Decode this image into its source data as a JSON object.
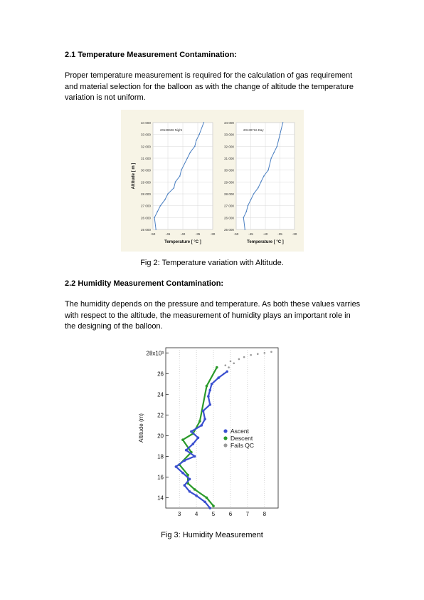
{
  "section1": {
    "heading": "2.1 Temperature Measurement Contamination:",
    "body": "Proper temperature measurement is required for the calculation of gas requirement and material selection for the balloon as with the change of altitude the temperature variation is not uniform."
  },
  "figure1": {
    "caption": "Fig 2: Temperature variation with Altitude.",
    "chart_data": [
      {
        "type": "line",
        "title": "20130606 Night",
        "xlabel": "Temperature [ °C ]",
        "ylabel": "Altitude [ m ]",
        "xlim": [
          -50,
          -30
        ],
        "ylim": [
          25000,
          34000
        ],
        "x_ticks": [
          "-50",
          "-45",
          "-40",
          "-35",
          "-30"
        ],
        "y_ticks": [
          "25 000",
          "26 000",
          "27 000",
          "28 000",
          "29 000",
          "30 000",
          "31 000",
          "32 000",
          "33 000",
          "34 000"
        ],
        "x": [
          -49,
          -49.5,
          -48.5,
          -47.5,
          -46,
          -45,
          -43,
          -42.5,
          -41,
          -40.5,
          -38.5,
          -37.5,
          -36,
          -35.5,
          -34.5,
          -33
        ],
        "y": [
          25000,
          26000,
          26500,
          27000,
          27500,
          28000,
          28500,
          29000,
          29500,
          30000,
          31000,
          31500,
          32000,
          32500,
          33000,
          34000
        ],
        "color": "#4a7fc1"
      },
      {
        "type": "line",
        "title": "20130716 Day",
        "xlabel": "Temperature [ °C ]",
        "xlim": [
          -50,
          -30
        ],
        "ylim": [
          25000,
          34000
        ],
        "x_ticks": [
          "-50",
          "-45",
          "-40",
          "-35",
          "-30"
        ],
        "y_ticks": [
          "25 000",
          "26 000",
          "27 000",
          "28 000",
          "29 000",
          "30 000",
          "31 000",
          "32 000",
          "33 000",
          "34 000"
        ],
        "x": [
          -47,
          -47.5,
          -46.5,
          -46,
          -45,
          -44,
          -42.5,
          -41.5,
          -40.5,
          -39,
          -38,
          -37,
          -36,
          -35,
          -34
        ],
        "y": [
          25000,
          26000,
          26500,
          27000,
          27500,
          28000,
          28500,
          29000,
          29500,
          30000,
          31000,
          31500,
          32000,
          33000,
          34000
        ],
        "color": "#4a7fc1"
      }
    ]
  },
  "section2": {
    "heading": "2.2 Humidity Measurement Contamination:",
    "body": "The humidity depends on the pressure and temperature. As both these values varries with respect to the altitude, the measurement of humidity plays an important role in the designing of the balloon."
  },
  "figure2": {
    "caption": "Fig 3: Humidity Measurement",
    "chart_data": {
      "type": "scatter",
      "ylabel": "Altitude (m)",
      "ylim": [
        13,
        28.5
      ],
      "xlim": [
        2.2,
        8.8
      ],
      "x_ticks": [
        "3",
        "4",
        "5",
        "6",
        "7",
        "8"
      ],
      "y_ticks": [
        "14",
        "16",
        "18",
        "20",
        "22",
        "24",
        "26",
        "28x10³"
      ],
      "legend": "right",
      "series": [
        {
          "name": "Ascent",
          "color": "#3a4fd0",
          "x": [
            4.8,
            4.5,
            4.0,
            3.6,
            3.3,
            3.6,
            3.2,
            2.8,
            3.3,
            3.9,
            3.4,
            3.8,
            4.1,
            3.7,
            4.3,
            4.5,
            4.4,
            4.8,
            4.7,
            4.8,
            4.9,
            5.3,
            5.8
          ],
          "y": [
            13.0,
            13.6,
            14.2,
            14.6,
            15.2,
            15.8,
            16.4,
            17.0,
            17.6,
            18.0,
            18.6,
            19.2,
            19.8,
            20.4,
            21.0,
            21.6,
            22.4,
            23.0,
            23.8,
            24.4,
            25.0,
            25.6,
            26.2
          ]
        },
        {
          "name": "Descent",
          "color": "#2a9a2a",
          "x": [
            5.0,
            4.6,
            3.9,
            3.5,
            3.5,
            3.0,
            3.7,
            3.2,
            3.8,
            4.2,
            4.6,
            5.2
          ],
          "y": [
            13.2,
            14.0,
            14.8,
            15.4,
            16.2,
            17.2,
            18.4,
            19.6,
            20.2,
            21.4,
            24.8,
            26.6
          ]
        },
        {
          "name": "Fails QC",
          "color": "#9a9a9a",
          "x": [
            5.6,
            5.9,
            6.2,
            6.5,
            6.8,
            7.2,
            7.6,
            8.0,
            8.4,
            6.0,
            5.7
          ],
          "y": [
            26.0,
            26.6,
            27.0,
            27.4,
            27.6,
            27.8,
            27.9,
            28.0,
            28.1,
            27.2,
            26.8
          ]
        }
      ]
    }
  }
}
